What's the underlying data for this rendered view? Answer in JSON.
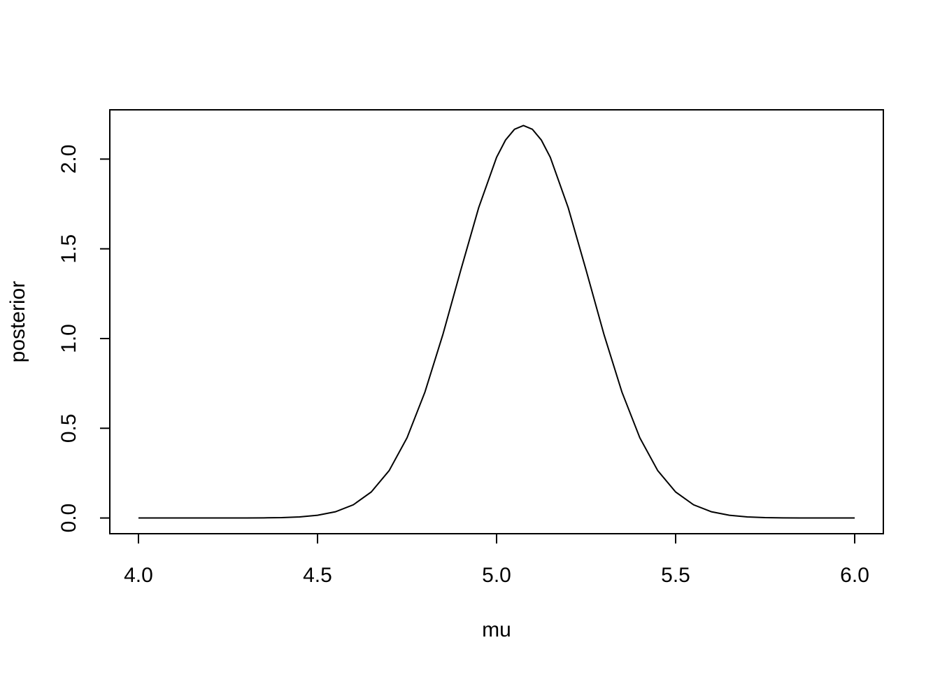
{
  "chart_data": {
    "type": "line",
    "x_label": "mu",
    "y_label": "posterior",
    "x": [
      4.0,
      4.05,
      4.1,
      4.15,
      4.2,
      4.25,
      4.3,
      4.35,
      4.4,
      4.45,
      4.5,
      4.55,
      4.6,
      4.65,
      4.7,
      4.75,
      4.8,
      4.85,
      4.9,
      4.95,
      5.0,
      5.025,
      5.05,
      5.075,
      5.1,
      5.125,
      5.15,
      5.2,
      5.25,
      5.3,
      5.35,
      5.4,
      5.45,
      5.5,
      5.55,
      5.6,
      5.65,
      5.7,
      5.75,
      5.8,
      5.85,
      5.9,
      5.95,
      6.0
    ],
    "series": [
      {
        "color": "#000000",
        "values": [
          0,
          0,
          0,
          0,
          0,
          0.0001,
          0.0003,
          0.0008,
          0.0023,
          0.0062,
          0.0152,
          0.0347,
          0.0737,
          0.145,
          0.264,
          0.447,
          0.702,
          1.022,
          1.381,
          1.729,
          2.01,
          2.106,
          2.166,
          2.187,
          2.166,
          2.106,
          2.01,
          1.729,
          1.381,
          1.022,
          0.702,
          0.447,
          0.264,
          0.145,
          0.0737,
          0.0347,
          0.0152,
          0.0062,
          0.0023,
          0.0008,
          0.0003,
          0.0001,
          0,
          0
        ]
      }
    ],
    "xlim": [
      3.92,
      6.08
    ],
    "ylim": [
      -0.0875,
      2.2745
    ],
    "xticks": [
      {
        "value": 4,
        "label": "4.0"
      },
      {
        "value": 4.5,
        "label": "4.5"
      },
      {
        "value": 5,
        "label": "5.0"
      },
      {
        "value": 5.5,
        "label": "5.5"
      },
      {
        "value": 6,
        "label": "6.0"
      }
    ],
    "yticks": [
      {
        "value": 0,
        "label": "0.0"
      },
      {
        "value": 0.5,
        "label": "0.5"
      },
      {
        "value": 1,
        "label": "1.0"
      },
      {
        "value": 1.5,
        "label": "1.5"
      },
      {
        "value": 2,
        "label": "2.0"
      }
    ]
  }
}
